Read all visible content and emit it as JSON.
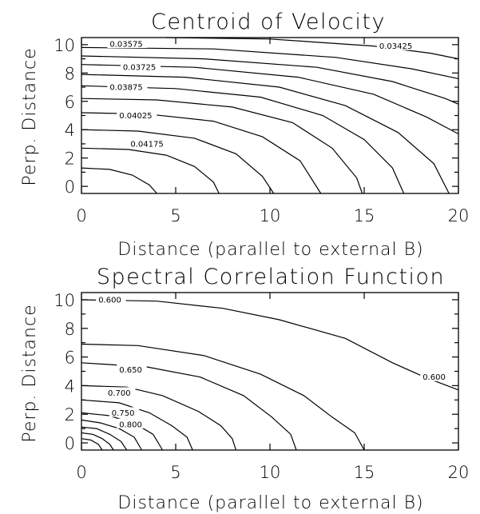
{
  "chart_data": [
    {
      "type": "contour",
      "title": "Centroid of Velocity",
      "xlabel": "Distance (parallel to external B)",
      "ylabel": "Perp. Distance",
      "xlim": [
        0,
        20
      ],
      "ylim": [
        -0.5,
        10.5
      ],
      "xticks": [
        0,
        5,
        10,
        15,
        20
      ],
      "yticks": [
        0,
        2,
        4,
        6,
        8,
        10
      ],
      "contours": [
        {
          "points": [
            [
              0,
              1.3
            ],
            [
              1.5,
              1.2
            ],
            [
              2.7,
              0.8
            ],
            [
              3.6,
              0.1
            ],
            [
              4.0,
              -0.5
            ]
          ]
        },
        {
          "points": [
            [
              0,
              2.7
            ],
            [
              2.5,
              2.6
            ],
            [
              4.5,
              2.2
            ],
            [
              6.0,
              1.4
            ],
            [
              7.0,
              0.3
            ],
            [
              7.3,
              -0.5
            ]
          ]
        },
        {
          "points": [
            [
              0,
              4.0
            ],
            [
              3.0,
              3.9
            ],
            [
              6.0,
              3.4
            ],
            [
              8.2,
              2.3
            ],
            [
              9.6,
              0.7
            ],
            [
              10.2,
              -0.5
            ]
          ]
        },
        {
          "points": [
            [
              0,
              5.2
            ],
            [
              3.5,
              5.1
            ],
            [
              7.0,
              4.6
            ],
            [
              9.6,
              3.5
            ],
            [
              11.6,
              1.8
            ],
            [
              12.7,
              -0.5
            ]
          ]
        },
        {
          "label": "0.04175",
          "label_at": [
            2.6,
            3.0
          ],
          "points": [
            [
              0,
              6.2
            ],
            [
              4.0,
              6.1
            ],
            [
              8.0,
              5.6
            ],
            [
              11.2,
              4.5
            ],
            [
              13.3,
              2.7
            ],
            [
              14.6,
              0.6
            ],
            [
              14.9,
              -0.5
            ]
          ]
        },
        {
          "label": "0.04025",
          "label_at": [
            2.0,
            5.0
          ],
          "points": [
            [
              0,
              7.1
            ],
            [
              5.0,
              6.9
            ],
            [
              9.5,
              6.3
            ],
            [
              12.8,
              5.0
            ],
            [
              15.0,
              3.3
            ],
            [
              16.5,
              1.3
            ],
            [
              17.1,
              -0.5
            ]
          ]
        },
        {
          "label": "0.03875",
          "label_at": [
            1.5,
            7.0
          ],
          "points": [
            [
              0,
              7.9
            ],
            [
              5.5,
              7.7
            ],
            [
              10.5,
              7.0
            ],
            [
              14.0,
              5.7
            ],
            [
              16.8,
              3.8
            ],
            [
              18.7,
              1.6
            ],
            [
              19.5,
              -0.5
            ]
          ]
        },
        {
          "label": "0.03725",
          "label_at": [
            2.2,
            8.4
          ],
          "points": [
            [
              0,
              8.6
            ],
            [
              6.0,
              8.4
            ],
            [
              11.5,
              7.7
            ],
            [
              15.5,
              6.5
            ],
            [
              18.3,
              4.9
            ],
            [
              20.0,
              3.7
            ]
          ]
        },
        {
          "points": [
            [
              0,
              9.2
            ],
            [
              6.5,
              9.0
            ],
            [
              12.5,
              8.4
            ],
            [
              16.5,
              7.4
            ],
            [
              19.3,
              6.2
            ],
            [
              20.0,
              5.8
            ]
          ]
        },
        {
          "label": "0.03575",
          "label_at": [
            1.5,
            10.05
          ],
          "points": [
            [
              0,
              9.8
            ],
            [
              7.0,
              9.7
            ],
            [
              13.5,
              9.1
            ],
            [
              17.5,
              8.3
            ],
            [
              20.0,
              7.6
            ]
          ]
        },
        {
          "label": "0.03425",
          "label_at": [
            15.8,
            9.9
          ],
          "points": [
            [
              4.5,
              10.5
            ],
            [
              10.0,
              10.4
            ],
            [
              15.5,
              9.9
            ],
            [
              18.5,
              9.4
            ],
            [
              20.0,
              9.0
            ]
          ]
        }
      ]
    },
    {
      "type": "contour",
      "title": "Spectral Correlation Function",
      "xlabel": "Distance (parallel to external B)",
      "ylabel": "Perp. Distance",
      "xlim": [
        0,
        20
      ],
      "ylim": [
        -0.5,
        10.5
      ],
      "xticks": [
        0,
        5,
        10,
        15,
        20
      ],
      "yticks": [
        0,
        2,
        4,
        6,
        8,
        10
      ],
      "contours": [
        {
          "label": "0.600",
          "label_at": [
            0.9,
            10.0
          ],
          "points": [
            [
              0,
              10.0
            ],
            [
              4.0,
              9.9
            ],
            [
              7.5,
              9.4
            ],
            [
              10.5,
              8.6
            ],
            [
              14.0,
              7.3
            ],
            [
              16.5,
              5.6
            ],
            [
              18.2,
              4.6
            ],
            [
              20.0,
              3.7
            ]
          ]
        },
        {
          "label": "0.600",
          "label_at": [
            18.1,
            4.6
          ],
          "points": []
        },
        {
          "points": [
            [
              0,
              6.9
            ],
            [
              3.0,
              6.8
            ],
            [
              6.5,
              6.1
            ],
            [
              9.5,
              4.8
            ],
            [
              11.8,
              3.3
            ],
            [
              13.3,
              1.8
            ],
            [
              14.5,
              0.7
            ],
            [
              15.0,
              -0.5
            ]
          ]
        },
        {
          "label": "0.650",
          "label_at": [
            2.0,
            5.1
          ],
          "points": [
            [
              0,
              5.6
            ],
            [
              3.5,
              5.3
            ],
            [
              6.3,
              4.6
            ],
            [
              8.6,
              3.3
            ],
            [
              10.1,
              1.8
            ],
            [
              11.1,
              0.6
            ],
            [
              11.4,
              -0.5
            ]
          ]
        },
        {
          "label": "0.700",
          "label_at": [
            1.4,
            3.5
          ],
          "points": [
            [
              0,
              4.0
            ],
            [
              2.4,
              3.9
            ],
            [
              4.3,
              3.3
            ],
            [
              6.2,
              2.2
            ],
            [
              7.4,
              1.2
            ],
            [
              8.0,
              0.3
            ],
            [
              8.2,
              -0.5
            ]
          ]
        },
        {
          "label": "0.750",
          "label_at": [
            1.6,
            2.1
          ],
          "points": [
            [
              0,
              3.0
            ],
            [
              2.0,
              2.8
            ],
            [
              3.6,
              2.1
            ],
            [
              4.8,
              1.2
            ],
            [
              5.6,
              0.4
            ],
            [
              5.9,
              -0.5
            ]
          ]
        },
        {
          "label": "0.800",
          "label_at": [
            2.0,
            1.3
          ],
          "points": [
            [
              0,
              2.1
            ],
            [
              1.5,
              1.9
            ],
            [
              2.9,
              1.3
            ],
            [
              3.8,
              0.6
            ],
            [
              4.3,
              -0.5
            ]
          ]
        },
        {
          "points": [
            [
              0,
              1.6
            ],
            [
              1.0,
              1.4
            ],
            [
              2.0,
              1.0
            ],
            [
              2.8,
              0.4
            ],
            [
              3.2,
              -0.5
            ]
          ]
        },
        {
          "points": [
            [
              0,
              1.1
            ],
            [
              0.8,
              1.0
            ],
            [
              1.5,
              0.6
            ],
            [
              2.1,
              0.1
            ],
            [
              2.4,
              -0.5
            ]
          ]
        },
        {
          "points": [
            [
              0,
              0.7
            ],
            [
              0.6,
              0.6
            ],
            [
              1.1,
              0.3
            ],
            [
              1.5,
              -0.1
            ],
            [
              1.7,
              -0.5
            ]
          ]
        },
        {
          "points": [
            [
              0,
              0.3
            ],
            [
              0.5,
              0.2
            ],
            [
              0.9,
              -0.1
            ],
            [
              1.1,
              -0.5
            ]
          ]
        }
      ]
    }
  ]
}
